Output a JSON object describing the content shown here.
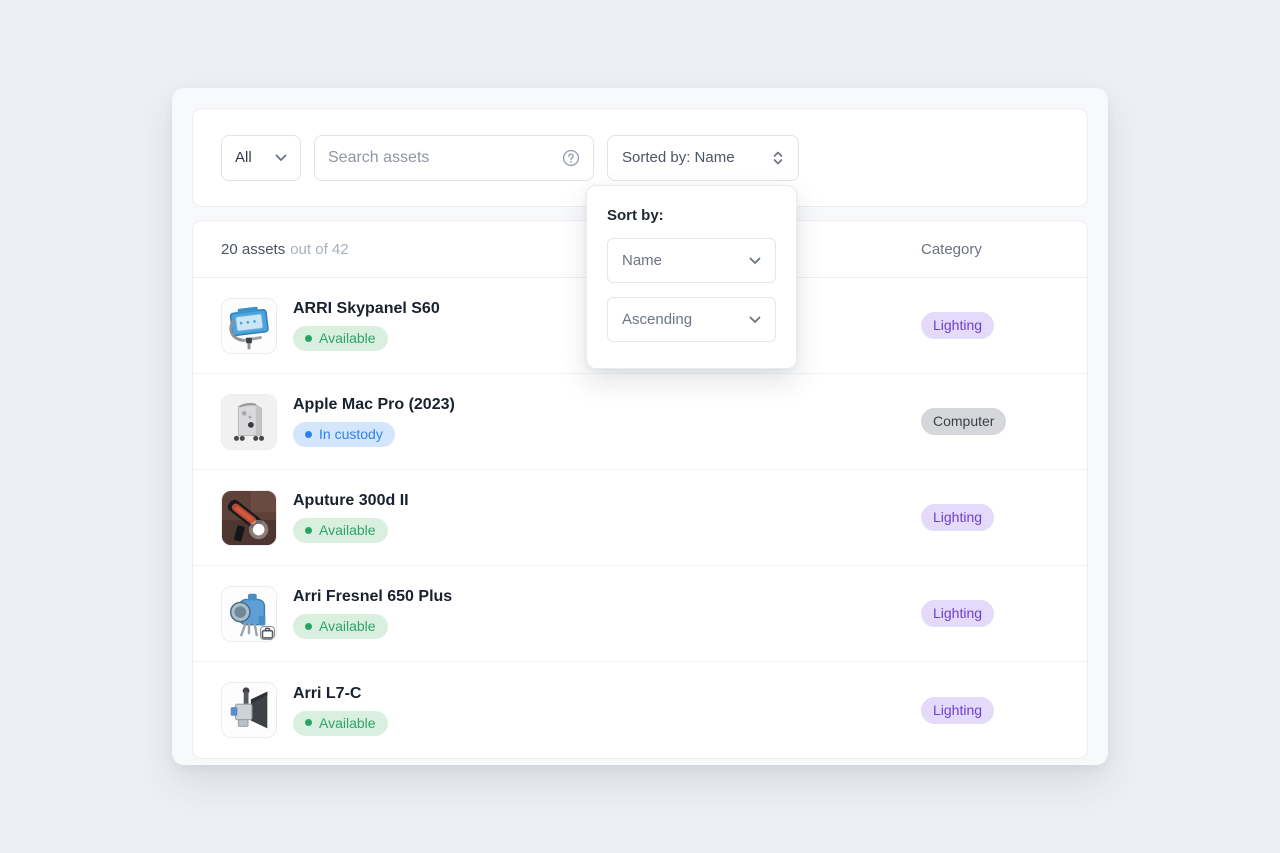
{
  "toolbar": {
    "filter": {
      "label": "All"
    },
    "search": {
      "placeholder": "Search assets"
    },
    "sort_button": {
      "label": "Sorted by: Name"
    }
  },
  "sort_popup": {
    "title": "Sort by:",
    "field_select": {
      "value": "Name"
    },
    "direction_select": {
      "value": "Ascending"
    }
  },
  "list": {
    "count": "20 assets",
    "count_suffix": "out of 42",
    "category_header": "Category",
    "rows": [
      {
        "title": "ARRI Skypanel S60",
        "status": "Available",
        "status_type": "available",
        "category": "Lighting",
        "category_type": "lighting",
        "thumb": "skypanel-thumbnail",
        "has_kit_badge": false
      },
      {
        "title": "Apple Mac Pro (2023)",
        "status": "In custody",
        "status_type": "in_custody",
        "category": "Computer",
        "category_type": "computer",
        "thumb": "macpro-thumbnail",
        "has_kit_badge": false
      },
      {
        "title": "Aputure 300d II",
        "status": "Available",
        "status_type": "available",
        "category": "Lighting",
        "category_type": "lighting",
        "thumb": "aputure-thumbnail",
        "has_kit_badge": false
      },
      {
        "title": "Arri Fresnel 650 Plus",
        "status": "Available",
        "status_type": "available",
        "category": "Lighting",
        "category_type": "lighting",
        "thumb": "fresnel-thumbnail",
        "has_kit_badge": true
      },
      {
        "title": "Arri L7-C",
        "status": "Available",
        "status_type": "available",
        "category": "Lighting",
        "category_type": "lighting",
        "thumb": "l7c-thumbnail",
        "has_kit_badge": false
      }
    ]
  },
  "colors": {
    "available": {
      "bg": "#d9f0e1",
      "text": "#2fa266",
      "dot": "#2fa266"
    },
    "in_custody": {
      "bg": "#d3e6fb",
      "text": "#2e80ec",
      "dot": "#2e80ec"
    },
    "lighting": {
      "bg": "#e4dbfa",
      "text": "#6c3fd8"
    },
    "computer": {
      "bg": "#d6d7da",
      "text": "#3d4148"
    }
  }
}
